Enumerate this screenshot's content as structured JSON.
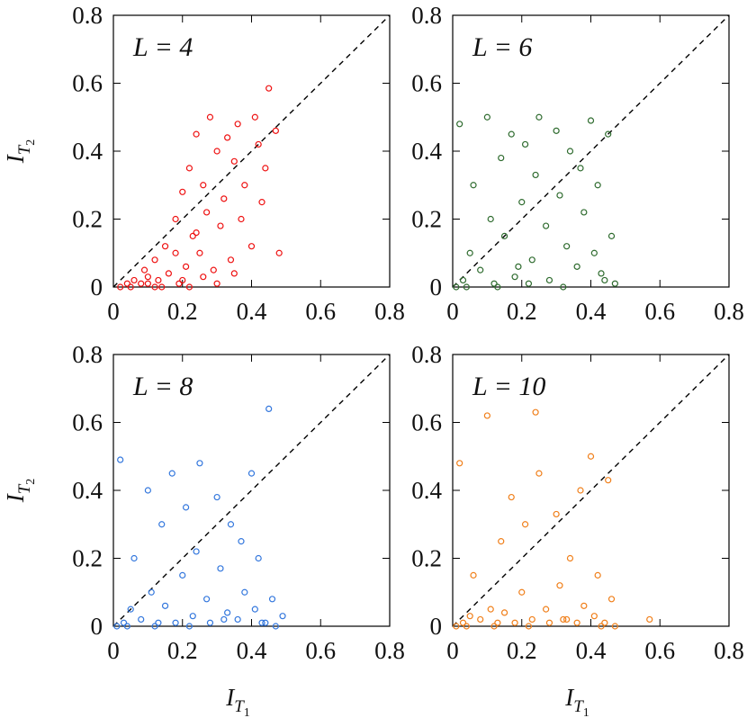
{
  "chart_data": [
    {
      "type": "scatter",
      "annotation": "L = 4",
      "color": "#ee1111",
      "ylabel": "I",
      "ylabel_sub": "T",
      "ylabel_subsub": "2",
      "x": [
        0.02,
        0.04,
        0.05,
        0.06,
        0.08,
        0.09,
        0.1,
        0.12,
        0.13,
        0.15,
        0.16,
        0.18,
        0.19,
        0.2,
        0.21,
        0.22,
        0.23,
        0.24,
        0.25,
        0.26,
        0.27,
        0.28,
        0.29,
        0.3,
        0.31,
        0.32,
        0.33,
        0.34,
        0.35,
        0.36,
        0.37,
        0.38,
        0.4,
        0.41,
        0.42,
        0.43,
        0.44,
        0.45,
        0.47,
        0.48,
        0.1,
        0.14,
        0.2,
        0.22,
        0.26,
        0.3,
        0.35,
        0.18,
        0.24,
        0.12
      ],
      "y": [
        0,
        0.01,
        0,
        0.02,
        0.01,
        0.05,
        0.03,
        0.08,
        0.02,
        0.12,
        0.04,
        0.2,
        0.01,
        0.28,
        0.06,
        0.35,
        0.15,
        0.45,
        0.1,
        0.3,
        0.22,
        0.5,
        0.05,
        0.4,
        0.18,
        0.26,
        0.44,
        0.08,
        0.37,
        0.48,
        0.2,
        0.3,
        0.12,
        0.5,
        0.42,
        0.25,
        0.35,
        0.585,
        0.46,
        0.1,
        0.01,
        0,
        0.02,
        0,
        0.03,
        0.01,
        0.04,
        0.1,
        0.16,
        0
      ],
      "xlim": [
        0,
        0.8
      ],
      "ylim": [
        0,
        0.8
      ],
      "xticks": [
        0,
        0.2,
        0.4,
        0.6,
        0.8
      ],
      "yticks": [
        0,
        0.2,
        0.4,
        0.6,
        0.8
      ],
      "diagonal": true
    },
    {
      "type": "scatter",
      "annotation": "L = 6",
      "color": "#2e6b2e",
      "x": [
        0.01,
        0.02,
        0.03,
        0.05,
        0.06,
        0.08,
        0.1,
        0.11,
        0.12,
        0.14,
        0.15,
        0.17,
        0.18,
        0.2,
        0.21,
        0.23,
        0.24,
        0.25,
        0.27,
        0.28,
        0.3,
        0.31,
        0.33,
        0.34,
        0.36,
        0.37,
        0.38,
        0.4,
        0.41,
        0.42,
        0.43,
        0.45,
        0.46,
        0.47,
        0.04,
        0.13,
        0.22,
        0.32,
        0.44,
        0.19
      ],
      "y": [
        0,
        0.48,
        0.02,
        0.1,
        0.3,
        0.05,
        0.5,
        0.2,
        0.01,
        0.38,
        0.15,
        0.45,
        0.03,
        0.25,
        0.42,
        0.08,
        0.33,
        0.5,
        0.18,
        0.02,
        0.46,
        0.27,
        0.12,
        0.4,
        0.06,
        0.35,
        0.22,
        0.49,
        0.1,
        0.3,
        0.04,
        0.45,
        0.15,
        0.01,
        0,
        0,
        0.01,
        0,
        0.02,
        0.06
      ],
      "xlim": [
        0,
        0.8
      ],
      "ylim": [
        0,
        0.8
      ],
      "xticks": [
        0,
        0.2,
        0.4,
        0.6,
        0.8
      ],
      "yticks": [
        0,
        0.2,
        0.4,
        0.6,
        0.8
      ],
      "diagonal": true
    },
    {
      "type": "scatter",
      "annotation": "L = 8",
      "color": "#3377dd",
      "ylabel": "I",
      "ylabel_sub": "T",
      "ylabel_subsub": "2",
      "xlabel": "I",
      "xlabel_sub": "T",
      "xlabel_subsub": "1",
      "x": [
        0.01,
        0.02,
        0.03,
        0.05,
        0.06,
        0.08,
        0.1,
        0.11,
        0.12,
        0.14,
        0.15,
        0.17,
        0.18,
        0.2,
        0.21,
        0.23,
        0.24,
        0.25,
        0.27,
        0.28,
        0.3,
        0.31,
        0.33,
        0.34,
        0.36,
        0.37,
        0.38,
        0.4,
        0.41,
        0.42,
        0.43,
        0.45,
        0.46,
        0.47,
        0.04,
        0.13,
        0.22,
        0.32,
        0.44,
        0.49
      ],
      "y": [
        0,
        0.49,
        0.01,
        0.05,
        0.2,
        0.02,
        0.4,
        0.1,
        0,
        0.3,
        0.06,
        0.45,
        0.01,
        0.15,
        0.35,
        0.03,
        0.22,
        0.48,
        0.08,
        0.01,
        0.38,
        0.17,
        0.04,
        0.3,
        0.02,
        0.25,
        0.1,
        0.45,
        0.05,
        0.2,
        0.01,
        0.64,
        0.08,
        0,
        0,
        0.01,
        0,
        0.02,
        0.01,
        0.03
      ],
      "xlim": [
        0,
        0.8
      ],
      "ylim": [
        0,
        0.8
      ],
      "xticks": [
        0,
        0.2,
        0.4,
        0.6,
        0.8
      ],
      "yticks": [
        0,
        0.2,
        0.4,
        0.6,
        0.8
      ],
      "diagonal": true
    },
    {
      "type": "scatter",
      "annotation": "L = 10",
      "color": "#f07f1a",
      "xlabel": "I",
      "xlabel_sub": "T",
      "xlabel_subsub": "1",
      "x": [
        0.01,
        0.02,
        0.03,
        0.05,
        0.06,
        0.08,
        0.1,
        0.11,
        0.12,
        0.14,
        0.15,
        0.17,
        0.18,
        0.2,
        0.21,
        0.23,
        0.24,
        0.25,
        0.27,
        0.28,
        0.3,
        0.31,
        0.33,
        0.34,
        0.36,
        0.37,
        0.38,
        0.4,
        0.41,
        0.42,
        0.43,
        0.45,
        0.46,
        0.47,
        0.04,
        0.13,
        0.22,
        0.32,
        0.44,
        0.57
      ],
      "y": [
        0,
        0.48,
        0.01,
        0.03,
        0.15,
        0.02,
        0.62,
        0.05,
        0,
        0.25,
        0.04,
        0.38,
        0.01,
        0.1,
        0.3,
        0.02,
        0.63,
        0.45,
        0.05,
        0.01,
        0.33,
        0.12,
        0.02,
        0.2,
        0.01,
        0.4,
        0.06,
        0.5,
        0.03,
        0.15,
        0,
        0.43,
        0.08,
        0,
        0,
        0.01,
        0,
        0.02,
        0.01,
        0.02
      ],
      "xlim": [
        0,
        0.8
      ],
      "ylim": [
        0,
        0.8
      ],
      "xticks": [
        0,
        0.2,
        0.4,
        0.6,
        0.8
      ],
      "yticks": [
        0,
        0.2,
        0.4,
        0.6,
        0.8
      ],
      "diagonal": true
    }
  ]
}
